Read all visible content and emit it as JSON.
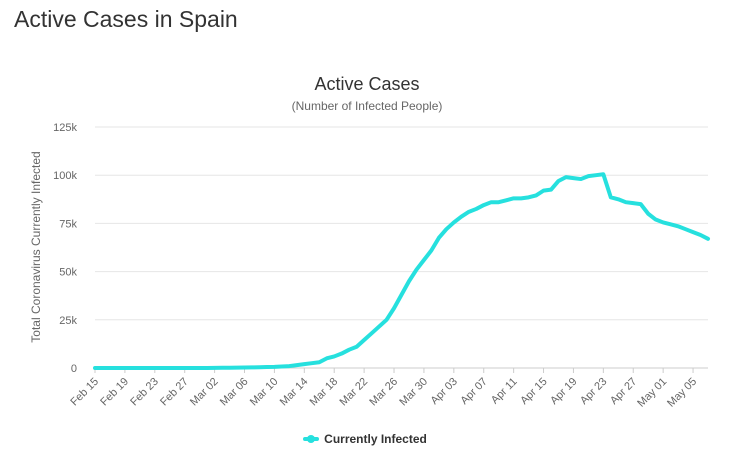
{
  "page": {
    "title": "Active Cases in Spain"
  },
  "colors": {
    "series": "#26e0de",
    "grid": "#e6e6e6",
    "axis_text": "#666666",
    "title_text": "#333333"
  },
  "chart_data": {
    "type": "line",
    "title": "Active Cases",
    "subtitle": "(Number of Infected People)",
    "ylabel": "Total Coronavirus Currently Infected",
    "xlabel": "",
    "ylim": [
      0,
      125000
    ],
    "yticks": [
      0,
      25000,
      50000,
      75000,
      100000,
      125000
    ],
    "ytick_labels": [
      "0",
      "25k",
      "50k",
      "75k",
      "100k",
      "125k"
    ],
    "x_start": "Feb 15",
    "xtick_labels": [
      "Feb 15",
      "Feb 19",
      "Feb 23",
      "Feb 27",
      "Mar 02",
      "Mar 06",
      "Mar 10",
      "Mar 14",
      "Mar 18",
      "Mar 22",
      "Mar 26",
      "Mar 30",
      "Apr 03",
      "Apr 07",
      "Apr 11",
      "Apr 15",
      "Apr 19",
      "Apr 23",
      "Apr 27",
      "May 01",
      "May 05"
    ],
    "grid": true,
    "legend": "bottom-center",
    "series": [
      {
        "name": "Currently Infected",
        "values": [
          0,
          0,
          0,
          0,
          0,
          0,
          0,
          0,
          0,
          0,
          0,
          0,
          0,
          0,
          0,
          0,
          50,
          100,
          150,
          200,
          250,
          300,
          400,
          500,
          600,
          800,
          1000,
          1500,
          2000,
          2500,
          3000,
          5000,
          6000,
          7500,
          9500,
          11000,
          14500,
          18000,
          21500,
          25000,
          31000,
          38000,
          45000,
          51000,
          56000,
          61000,
          67500,
          72000,
          75500,
          78500,
          81000,
          82500,
          84500,
          86000,
          86000,
          87000,
          88000,
          88000,
          88500,
          89500,
          92000,
          92500,
          97000,
          99000,
          98500,
          98000,
          99500,
          100000,
          100500,
          88500,
          87500,
          86000,
          85500,
          85000,
          80000,
          77000,
          75500,
          74500,
          73500,
          72000,
          70500,
          69000,
          67000
        ]
      }
    ]
  }
}
